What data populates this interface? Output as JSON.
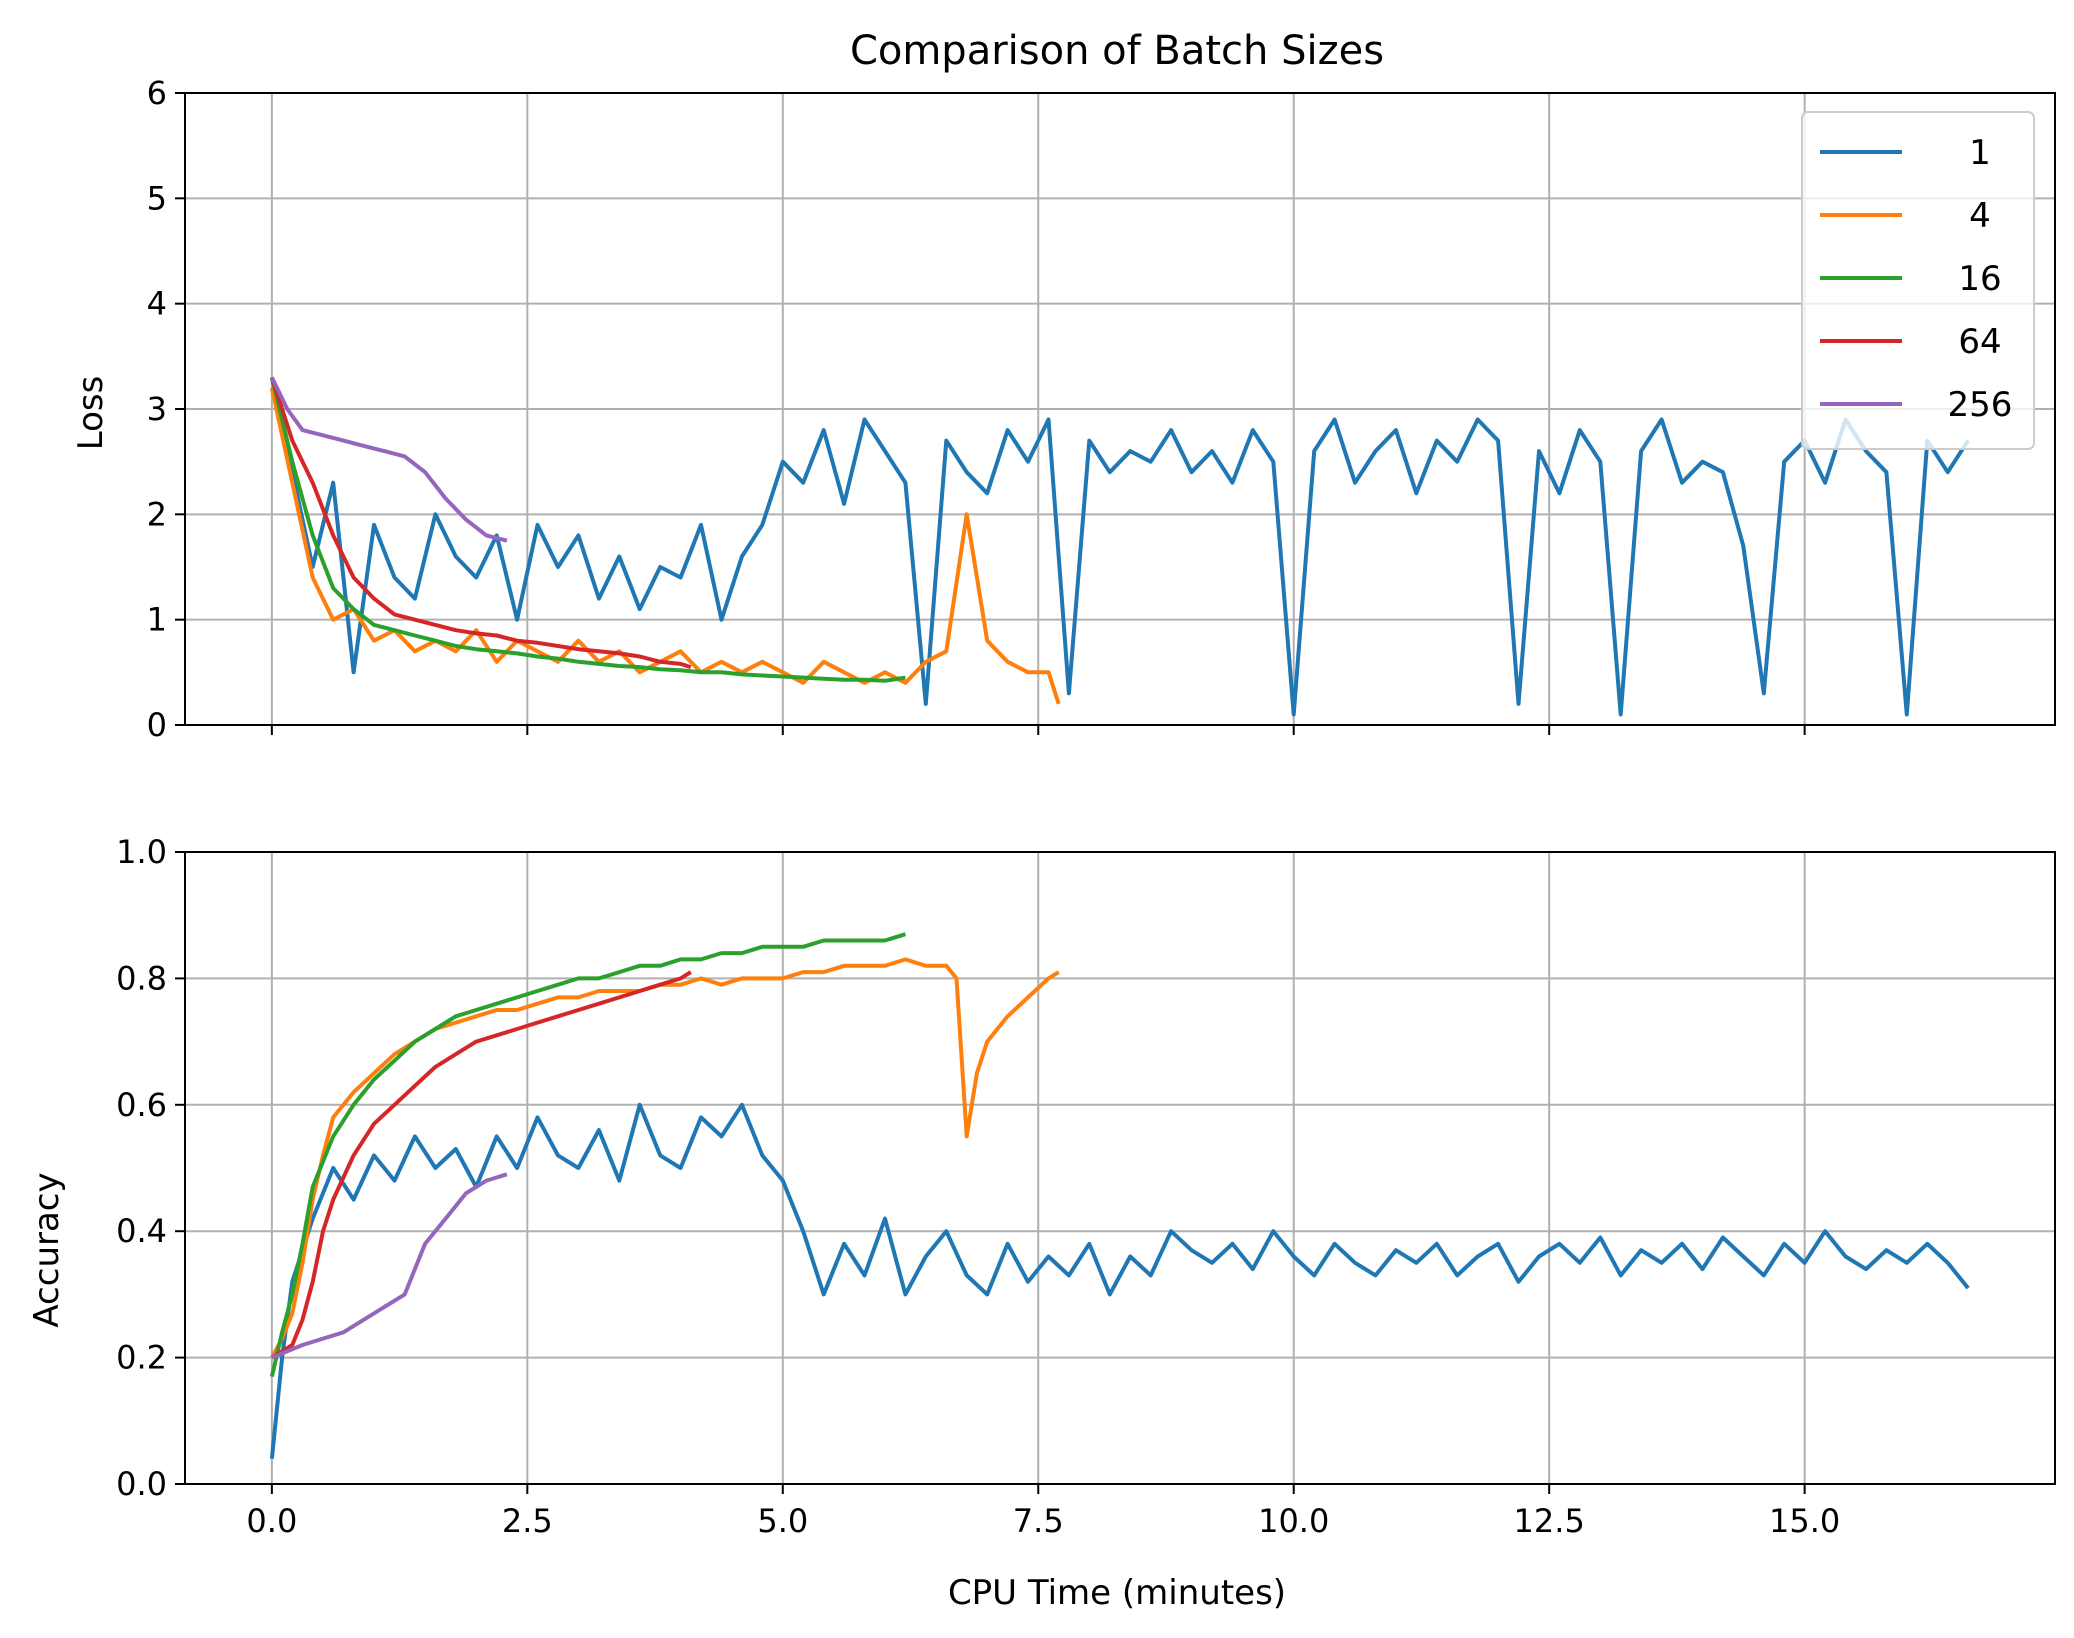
{
  "chart_data": [
    {
      "type": "line",
      "title": "Comparison of Batch Sizes",
      "xlabel": "",
      "ylabel": "Loss",
      "xlim": [
        -0.85,
        17.45
      ],
      "ylim": [
        0,
        6
      ],
      "xticks": [
        0.0,
        2.5,
        5.0,
        7.5,
        10.0,
        12.5,
        15.0
      ],
      "yticks": [
        0,
        1,
        2,
        3,
        4,
        5,
        6
      ],
      "ytick_labels": [
        "0",
        "1",
        "2",
        "3",
        "4",
        "5",
        "6"
      ],
      "grid": true,
      "legend": "top-right",
      "series": [
        {
          "name": "1",
          "color": "#1f77b4",
          "x": [
            0.0,
            0.2,
            0.4,
            0.6,
            0.8,
            1.0,
            1.2,
            1.4,
            1.6,
            1.8,
            2.0,
            2.2,
            2.4,
            2.6,
            2.8,
            3.0,
            3.2,
            3.4,
            3.6,
            3.8,
            4.0,
            4.2,
            4.4,
            4.6,
            4.8,
            5.0,
            5.2,
            5.4,
            5.6,
            5.8,
            6.0,
            6.2,
            6.4,
            6.6,
            6.8,
            7.0,
            7.2,
            7.4,
            7.6,
            7.8,
            8.0,
            8.2,
            8.4,
            8.6,
            8.8,
            9.0,
            9.2,
            9.4,
            9.6,
            9.8,
            10.0,
            10.2,
            10.4,
            10.6,
            10.8,
            11.0,
            11.2,
            11.4,
            11.6,
            11.8,
            12.0,
            12.2,
            12.4,
            12.6,
            12.8,
            13.0,
            13.2,
            13.4,
            13.6,
            13.8,
            14.0,
            14.2,
            14.4,
            14.6,
            14.8,
            15.0,
            15.2,
            15.4,
            15.6,
            15.8,
            16.0,
            16.2,
            16.4,
            16.6
          ],
          "y": [
            3.3,
            2.4,
            1.5,
            2.3,
            0.5,
            1.9,
            1.4,
            1.2,
            2.0,
            1.6,
            1.4,
            1.8,
            1.0,
            1.9,
            1.5,
            1.8,
            1.2,
            1.6,
            1.1,
            1.5,
            1.4,
            1.9,
            1.0,
            1.6,
            1.9,
            2.5,
            2.3,
            2.8,
            2.1,
            2.9,
            2.6,
            2.3,
            0.2,
            2.7,
            2.4,
            2.2,
            2.8,
            2.5,
            2.9,
            0.3,
            2.7,
            2.4,
            2.6,
            2.5,
            2.8,
            2.4,
            2.6,
            2.3,
            2.8,
            2.5,
            0.1,
            2.6,
            2.9,
            2.3,
            2.6,
            2.8,
            2.2,
            2.7,
            2.5,
            2.9,
            2.7,
            0.2,
            2.6,
            2.2,
            2.8,
            2.5,
            0.1,
            2.6,
            2.9,
            2.3,
            2.5,
            2.4,
            1.7,
            0.3,
            2.5,
            2.7,
            2.3,
            2.9,
            2.6,
            2.4,
            0.1,
            2.7,
            2.4,
            2.7
          ]
        },
        {
          "name": "4",
          "color": "#ff7f0e",
          "x": [
            0.0,
            0.2,
            0.4,
            0.6,
            0.8,
            1.0,
            1.2,
            1.4,
            1.6,
            1.8,
            2.0,
            2.2,
            2.4,
            2.6,
            2.8,
            3.0,
            3.2,
            3.4,
            3.6,
            3.8,
            4.0,
            4.2,
            4.4,
            4.6,
            4.8,
            5.0,
            5.2,
            5.4,
            5.6,
            5.8,
            6.0,
            6.2,
            6.4,
            6.6,
            6.8,
            7.0,
            7.2,
            7.4,
            7.6,
            7.7
          ],
          "y": [
            3.2,
            2.3,
            1.4,
            1.0,
            1.1,
            0.8,
            0.9,
            0.7,
            0.8,
            0.7,
            0.9,
            0.6,
            0.8,
            0.7,
            0.6,
            0.8,
            0.6,
            0.7,
            0.5,
            0.6,
            0.7,
            0.5,
            0.6,
            0.5,
            0.6,
            0.5,
            0.4,
            0.6,
            0.5,
            0.4,
            0.5,
            0.4,
            0.6,
            0.7,
            2.0,
            0.8,
            0.6,
            0.5,
            0.5,
            0.2
          ]
        },
        {
          "name": "16",
          "color": "#2ca02c",
          "x": [
            0.0,
            0.2,
            0.4,
            0.6,
            0.8,
            1.0,
            1.2,
            1.4,
            1.6,
            1.8,
            2.0,
            2.2,
            2.4,
            2.6,
            2.8,
            3.0,
            3.2,
            3.4,
            3.6,
            3.8,
            4.0,
            4.2,
            4.4,
            4.6,
            4.8,
            5.0,
            5.2,
            5.4,
            5.6,
            5.8,
            6.0,
            6.2
          ],
          "y": [
            3.3,
            2.5,
            1.8,
            1.3,
            1.1,
            0.95,
            0.9,
            0.85,
            0.8,
            0.75,
            0.72,
            0.7,
            0.68,
            0.65,
            0.63,
            0.6,
            0.58,
            0.56,
            0.55,
            0.53,
            0.52,
            0.5,
            0.5,
            0.48,
            0.47,
            0.46,
            0.45,
            0.44,
            0.43,
            0.43,
            0.42,
            0.45
          ]
        },
        {
          "name": "64",
          "color": "#d62728",
          "x": [
            0.0,
            0.2,
            0.4,
            0.6,
            0.8,
            1.0,
            1.2,
            1.4,
            1.6,
            1.8,
            2.0,
            2.2,
            2.4,
            2.6,
            2.8,
            3.0,
            3.2,
            3.4,
            3.6,
            3.8,
            4.0,
            4.1
          ],
          "y": [
            3.3,
            2.7,
            2.3,
            1.8,
            1.4,
            1.2,
            1.05,
            1.0,
            0.95,
            0.9,
            0.87,
            0.85,
            0.8,
            0.78,
            0.75,
            0.72,
            0.7,
            0.68,
            0.65,
            0.6,
            0.58,
            0.55
          ]
        },
        {
          "name": "256",
          "color": "#9467bd",
          "x": [
            0.0,
            0.15,
            0.3,
            0.5,
            0.7,
            0.9,
            1.1,
            1.3,
            1.5,
            1.7,
            1.9,
            2.1,
            2.3
          ],
          "y": [
            3.3,
            3.0,
            2.8,
            2.75,
            2.7,
            2.65,
            2.6,
            2.55,
            2.4,
            2.15,
            1.95,
            1.8,
            1.75
          ]
        }
      ]
    },
    {
      "type": "line",
      "title": "",
      "xlabel": "CPU Time (minutes)",
      "ylabel": "Accuracy",
      "xlim": [
        -0.85,
        17.45
      ],
      "ylim": [
        0.0,
        1.0
      ],
      "xticks": [
        0.0,
        2.5,
        5.0,
        7.5,
        10.0,
        12.5,
        15.0
      ],
      "xtick_labels": [
        "0.0",
        "2.5",
        "5.0",
        "7.5",
        "10.0",
        "12.5",
        "15.0"
      ],
      "yticks": [
        0.0,
        0.2,
        0.4,
        0.6,
        0.8,
        1.0
      ],
      "ytick_labels": [
        "0.0",
        "0.2",
        "0.4",
        "0.6",
        "0.8",
        "1.0"
      ],
      "grid": true,
      "series": [
        {
          "name": "1",
          "color": "#1f77b4",
          "x": [
            0.0,
            0.1,
            0.2,
            0.4,
            0.6,
            0.8,
            1.0,
            1.2,
            1.4,
            1.6,
            1.8,
            2.0,
            2.2,
            2.4,
            2.6,
            2.8,
            3.0,
            3.2,
            3.4,
            3.6,
            3.8,
            4.0,
            4.2,
            4.4,
            4.6,
            4.8,
            5.0,
            5.2,
            5.4,
            5.6,
            5.8,
            6.0,
            6.2,
            6.4,
            6.6,
            6.8,
            7.0,
            7.2,
            7.4,
            7.6,
            7.8,
            8.0,
            8.2,
            8.4,
            8.6,
            8.8,
            9.0,
            9.2,
            9.4,
            9.6,
            9.8,
            10.0,
            10.2,
            10.4,
            10.6,
            10.8,
            11.0,
            11.2,
            11.4,
            11.6,
            11.8,
            12.0,
            12.2,
            12.4,
            12.6,
            12.8,
            13.0,
            13.2,
            13.4,
            13.6,
            13.8,
            14.0,
            14.2,
            14.4,
            14.6,
            14.8,
            15.0,
            15.2,
            15.4,
            15.6,
            15.8,
            16.0,
            16.2,
            16.4,
            16.6
          ],
          "y": [
            0.04,
            0.2,
            0.32,
            0.42,
            0.5,
            0.45,
            0.52,
            0.48,
            0.55,
            0.5,
            0.53,
            0.47,
            0.55,
            0.5,
            0.58,
            0.52,
            0.5,
            0.56,
            0.48,
            0.6,
            0.52,
            0.5,
            0.58,
            0.55,
            0.6,
            0.52,
            0.48,
            0.4,
            0.3,
            0.38,
            0.33,
            0.42,
            0.3,
            0.36,
            0.4,
            0.33,
            0.3,
            0.38,
            0.32,
            0.36,
            0.33,
            0.38,
            0.3,
            0.36,
            0.33,
            0.4,
            0.37,
            0.35,
            0.38,
            0.34,
            0.4,
            0.36,
            0.33,
            0.38,
            0.35,
            0.33,
            0.37,
            0.35,
            0.38,
            0.33,
            0.36,
            0.38,
            0.32,
            0.36,
            0.38,
            0.35,
            0.39,
            0.33,
            0.37,
            0.35,
            0.38,
            0.34,
            0.39,
            0.36,
            0.33,
            0.38,
            0.35,
            0.4,
            0.36,
            0.34,
            0.37,
            0.35,
            0.38,
            0.35,
            0.31
          ]
        },
        {
          "name": "4",
          "color": "#ff7f0e",
          "x": [
            0.0,
            0.1,
            0.2,
            0.3,
            0.4,
            0.5,
            0.6,
            0.8,
            1.0,
            1.2,
            1.4,
            1.6,
            1.8,
            2.0,
            2.2,
            2.4,
            2.6,
            2.8,
            3.0,
            3.2,
            3.4,
            3.6,
            3.8,
            4.0,
            4.2,
            4.4,
            4.6,
            4.8,
            5.0,
            5.2,
            5.4,
            5.6,
            5.8,
            6.0,
            6.2,
            6.4,
            6.6,
            6.7,
            6.8,
            6.9,
            7.0,
            7.2,
            7.4,
            7.6,
            7.7
          ],
          "y": [
            0.2,
            0.23,
            0.27,
            0.35,
            0.45,
            0.52,
            0.58,
            0.62,
            0.65,
            0.68,
            0.7,
            0.72,
            0.73,
            0.74,
            0.75,
            0.75,
            0.76,
            0.77,
            0.77,
            0.78,
            0.78,
            0.78,
            0.79,
            0.79,
            0.8,
            0.79,
            0.8,
            0.8,
            0.8,
            0.81,
            0.81,
            0.82,
            0.82,
            0.82,
            0.83,
            0.82,
            0.82,
            0.8,
            0.55,
            0.65,
            0.7,
            0.74,
            0.77,
            0.8,
            0.81
          ]
        },
        {
          "name": "16",
          "color": "#2ca02c",
          "x": [
            0.0,
            0.1,
            0.2,
            0.3,
            0.4,
            0.6,
            0.8,
            1.0,
            1.2,
            1.4,
            1.6,
            1.8,
            2.0,
            2.2,
            2.4,
            2.6,
            2.8,
            3.0,
            3.2,
            3.4,
            3.6,
            3.8,
            4.0,
            4.2,
            4.4,
            4.6,
            4.8,
            5.0,
            5.2,
            5.4,
            5.6,
            5.8,
            6.0,
            6.2
          ],
          "y": [
            0.17,
            0.24,
            0.3,
            0.38,
            0.47,
            0.55,
            0.6,
            0.64,
            0.67,
            0.7,
            0.72,
            0.74,
            0.75,
            0.76,
            0.77,
            0.78,
            0.79,
            0.8,
            0.8,
            0.81,
            0.82,
            0.82,
            0.83,
            0.83,
            0.84,
            0.84,
            0.85,
            0.85,
            0.85,
            0.86,
            0.86,
            0.86,
            0.86,
            0.87
          ]
        },
        {
          "name": "64",
          "color": "#d62728",
          "x": [
            0.0,
            0.1,
            0.2,
            0.3,
            0.4,
            0.5,
            0.6,
            0.8,
            1.0,
            1.2,
            1.4,
            1.6,
            1.8,
            2.0,
            2.2,
            2.4,
            2.6,
            2.8,
            3.0,
            3.2,
            3.4,
            3.6,
            3.8,
            4.0,
            4.1
          ],
          "y": [
            0.2,
            0.21,
            0.22,
            0.26,
            0.32,
            0.4,
            0.45,
            0.52,
            0.57,
            0.6,
            0.63,
            0.66,
            0.68,
            0.7,
            0.71,
            0.72,
            0.73,
            0.74,
            0.75,
            0.76,
            0.77,
            0.78,
            0.79,
            0.8,
            0.81
          ]
        },
        {
          "name": "256",
          "color": "#9467bd",
          "x": [
            0.0,
            0.15,
            0.3,
            0.5,
            0.7,
            0.9,
            1.1,
            1.3,
            1.5,
            1.7,
            1.9,
            2.1,
            2.3
          ],
          "y": [
            0.2,
            0.21,
            0.22,
            0.23,
            0.24,
            0.26,
            0.28,
            0.3,
            0.38,
            0.42,
            0.46,
            0.48,
            0.49
          ]
        }
      ]
    }
  ]
}
